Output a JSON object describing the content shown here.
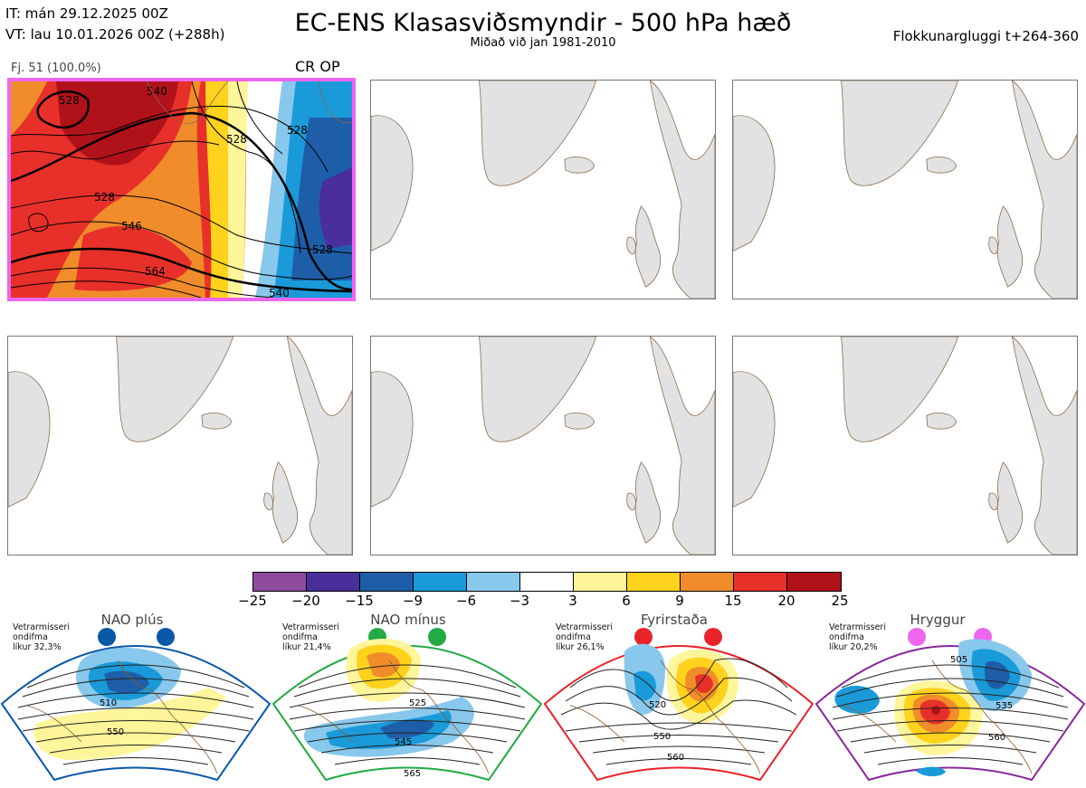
{
  "header": {
    "init_time": "IT: mán 29.12.2025 00Z",
    "valid_time": "VT: lau 10.01.2026 00Z  (+288h)",
    "title": "EC-ENS Klasasviðsmyndir - 500 hPa hæð",
    "subtitle": "Miðað við jan 1981-2010",
    "window": "Flokkunargluggi t+264-360"
  },
  "panels": [
    {
      "label": "Fj. 51 (100.0%)",
      "tag": "CR OP",
      "highlight": true,
      "contour_labels": [
        "528",
        "540",
        "528",
        "528",
        "528",
        "546",
        "528",
        "564",
        "540"
      ]
    },
    {
      "label": "",
      "tag": "",
      "highlight": false
    },
    {
      "label": "",
      "tag": "",
      "highlight": false
    },
    {
      "label": "",
      "tag": "",
      "highlight": false
    },
    {
      "label": "",
      "tag": "",
      "highlight": false
    },
    {
      "label": "",
      "tag": "",
      "highlight": false
    }
  ],
  "colorbar": {
    "colors": [
      "#8e4a9c",
      "#4a2e9a",
      "#1e5ea8",
      "#1a9ad8",
      "#88c8ec",
      "#ffffff",
      "#fff59a",
      "#ffd21e",
      "#f08c2a",
      "#e8302a",
      "#b0121a"
    ],
    "ticks": [
      "−25",
      "−20",
      "−15",
      "−9",
      "−6",
      "−3",
      "3",
      "6",
      "9",
      "15",
      "20",
      "25"
    ]
  },
  "regimes": [
    {
      "name": "NAO plús",
      "freq_lines": [
        "Vetrarmisseri",
        "ondifma",
        "líkur 32,3%"
      ],
      "dot_color": "#0a58a8",
      "border_color": "#0a58a8",
      "contour_labels": [
        "510",
        "550"
      ]
    },
    {
      "name": "NAO mínus",
      "freq_lines": [
        "Vetrarmisseri",
        "ondifma",
        "líkur 21,4%"
      ],
      "dot_color": "#22aa44",
      "border_color": "#22aa44",
      "contour_labels": [
        "525",
        "545",
        "565"
      ]
    },
    {
      "name": "Fyrirstaða",
      "freq_lines": [
        "Vetrarmisseri",
        "ondifma",
        "líkur 26,1%"
      ],
      "dot_color": "#e8242a",
      "border_color": "#e8242a",
      "contour_labels": [
        "520",
        "550",
        "560"
      ]
    },
    {
      "name": "Hryggur",
      "freq_lines": [
        "Vetrarmisseri",
        "ondifma",
        "líkur 20,2%"
      ],
      "dot_color": "#ee66ee",
      "border_color": "#882a9a",
      "contour_labels": [
        "505",
        "535",
        "560"
      ]
    }
  ]
}
